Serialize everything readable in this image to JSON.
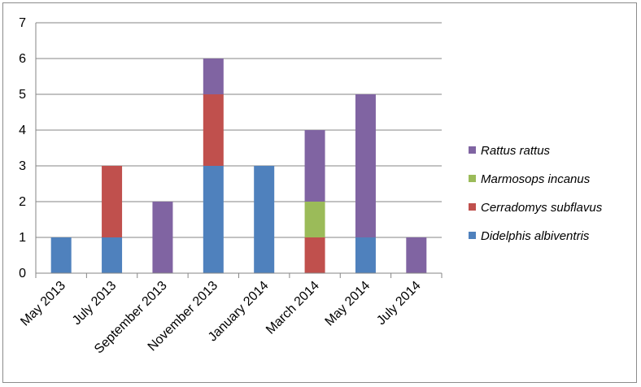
{
  "chart_data": {
    "type": "bar",
    "stacked": true,
    "categories": [
      "May 2013",
      "July 2013",
      "September 2013",
      "November 2013",
      "January 2014",
      "March 2014",
      "May 2014",
      "July 2014"
    ],
    "series": [
      {
        "name": "Didelphis albiventris",
        "color": "#4f81bd",
        "values": [
          1,
          1,
          0,
          3,
          3,
          0,
          1,
          0
        ]
      },
      {
        "name": "Cerradomys subflavus",
        "color": "#c0504d",
        "values": [
          0,
          2,
          0,
          2,
          0,
          1,
          0,
          0
        ]
      },
      {
        "name": "Marmosops incanus",
        "color": "#9bbb59",
        "values": [
          0,
          0,
          0,
          0,
          0,
          1,
          0,
          0
        ]
      },
      {
        "name": "Rattus rattus",
        "color": "#8064a2",
        "values": [
          0,
          0,
          2,
          1,
          0,
          2,
          4,
          1
        ]
      }
    ],
    "ylim": [
      0,
      7
    ],
    "yticks": [
      0,
      1,
      2,
      3,
      4,
      5,
      6,
      7
    ],
    "grid": true,
    "legend_position": "right",
    "legend_order": [
      "Rattus rattus",
      "Marmosops incanus",
      "Cerradomys subflavus",
      "Didelphis albiventris"
    ]
  }
}
